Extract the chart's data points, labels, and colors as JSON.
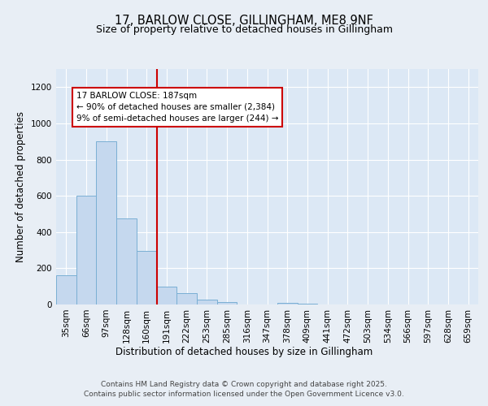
{
  "title1": "17, BARLOW CLOSE, GILLINGHAM, ME8 9NF",
  "title2": "Size of property relative to detached houses in Gillingham",
  "xlabel": "Distribution of detached houses by size in Gillingham",
  "ylabel": "Number of detached properties",
  "categories": [
    "35sqm",
    "66sqm",
    "97sqm",
    "128sqm",
    "160sqm",
    "191sqm",
    "222sqm",
    "253sqm",
    "285sqm",
    "316sqm",
    "347sqm",
    "378sqm",
    "409sqm",
    "441sqm",
    "472sqm",
    "503sqm",
    "534sqm",
    "566sqm",
    "597sqm",
    "628sqm",
    "659sqm"
  ],
  "values": [
    160,
    600,
    900,
    475,
    295,
    100,
    65,
    25,
    15,
    0,
    0,
    10,
    5,
    0,
    0,
    0,
    0,
    0,
    0,
    0,
    0
  ],
  "bar_color": "#c5d8ee",
  "bar_edge_color": "#7aafd4",
  "vline_x_index": 5,
  "vline_color": "#cc0000",
  "annotation_text": "17 BARLOW CLOSE: 187sqm\n← 90% of detached houses are smaller (2,384)\n9% of semi-detached houses are larger (244) →",
  "annotation_box_color": "#ffffff",
  "annotation_box_edge": "#cc0000",
  "ylim": [
    0,
    1300
  ],
  "yticks": [
    0,
    200,
    400,
    600,
    800,
    1000,
    1200
  ],
  "bg_color": "#e8eef5",
  "plot_bg_color": "#dce8f5",
  "footer": "Contains HM Land Registry data © Crown copyright and database right 2025.\nContains public sector information licensed under the Open Government Licence v3.0.",
  "title_fontsize": 10.5,
  "subtitle_fontsize": 9,
  "axis_label_fontsize": 8.5,
  "tick_fontsize": 7.5,
  "annotation_fontsize": 7.5,
  "footer_fontsize": 6.5
}
